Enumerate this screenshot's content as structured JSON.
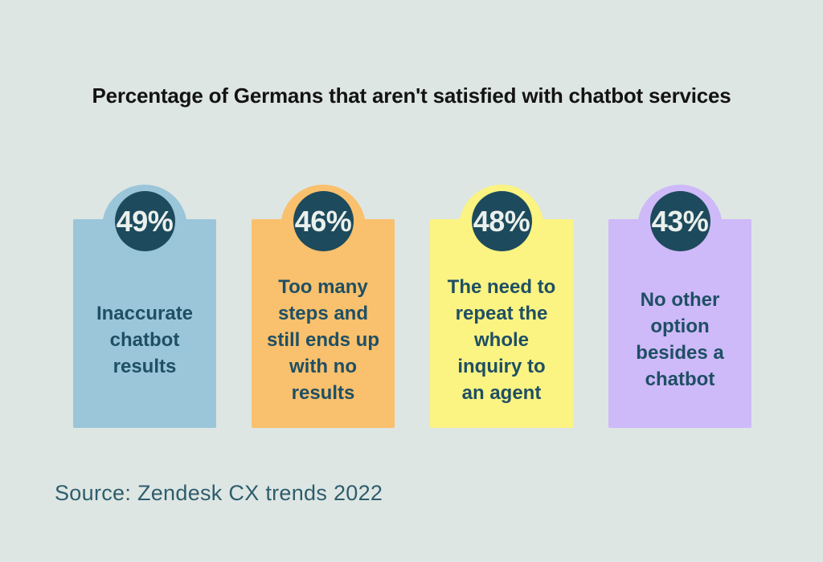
{
  "title": "Percentage of Germans that aren't satisfied with chatbot services",
  "source": "Source: Zendesk CX trends 2022",
  "colors": {
    "background": "#dee6e3",
    "badge": "#1d4a5c",
    "badge_text": "#eaf0ec",
    "label_text": "#1e4f63",
    "title_text": "#131313",
    "source_text": "#2e5d6d"
  },
  "cards": [
    {
      "percentage": "49%",
      "label": "Inaccurate\nchatbot\nresults",
      "color": "#9bc6d9"
    },
    {
      "percentage": "46%",
      "label": "Too many\nsteps and\nstill ends up\nwith no\nresults",
      "color": "#f9c06d"
    },
    {
      "percentage": "48%",
      "label": "The need to\nrepeat the\nwhole\ninquiry to\nan agent",
      "color": "#fbf382"
    },
    {
      "percentage": "43%",
      "label": "No other\noption\nbesides a\nchatbot",
      "color": "#ceb9f9"
    }
  ],
  "chart_data": {
    "type": "bar",
    "subtype": "infographic-stat-cards",
    "title": "Percentage of Germans that aren't satisfied with chatbot services",
    "categories": [
      "Inaccurate chatbot results",
      "Too many steps and still ends up with no results",
      "The need to repeat the whole inquiry to an agent",
      "No other option besides a chatbot"
    ],
    "values": [
      49,
      46,
      48,
      43
    ],
    "unit": "%",
    "source": "Source: Zendesk CX trends 2022",
    "legend": "none",
    "grid": false,
    "card_colors": [
      "#9bc6d9",
      "#f9c06d",
      "#fbf382",
      "#ceb9f9"
    ]
  }
}
